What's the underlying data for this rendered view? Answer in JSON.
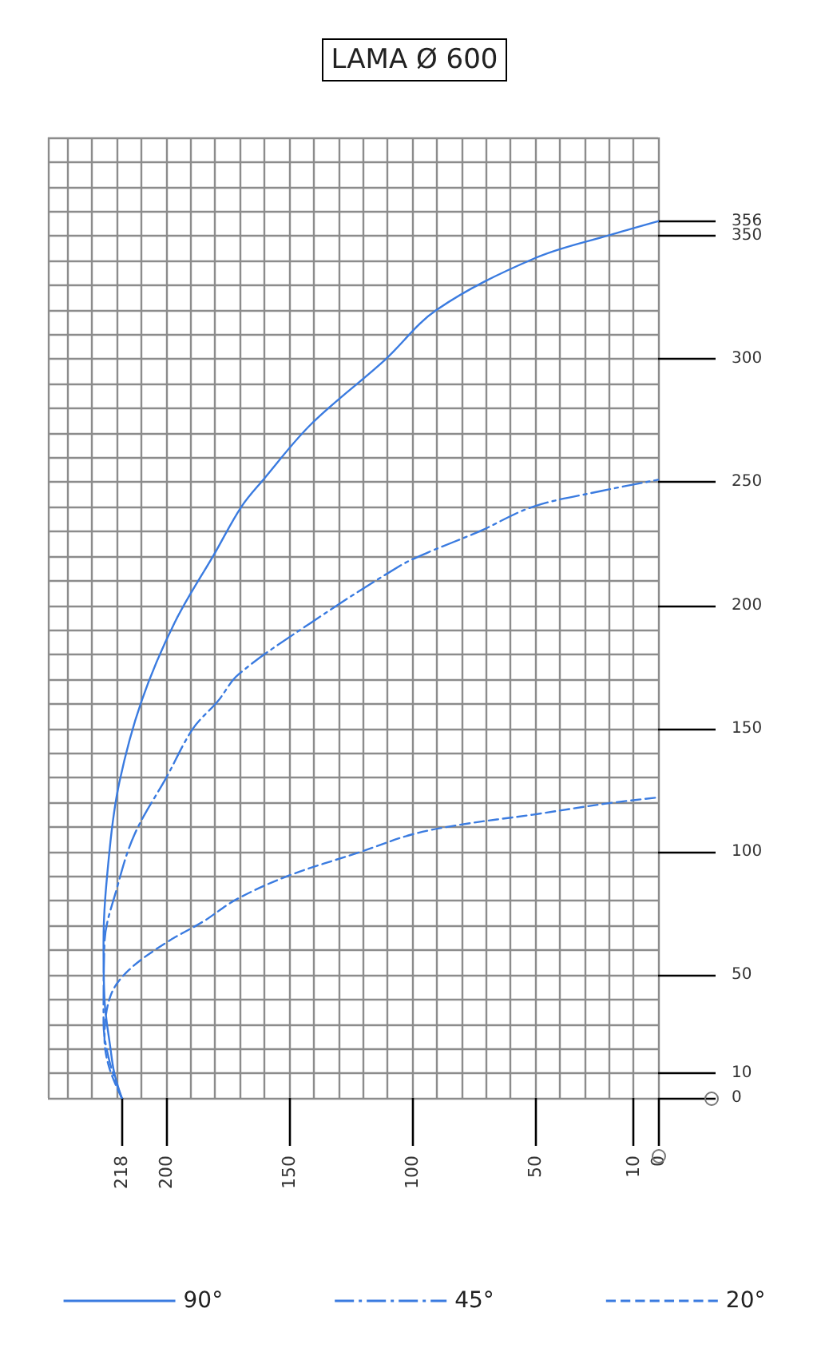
{
  "chart_data": {
    "type": "line",
    "title": "LAMA Ø 600",
    "xlim": [
      248,
      0
    ],
    "ylim": [
      0,
      390
    ],
    "xticks": [
      0,
      10,
      {
        "value": 20,
        "label": null
      },
      {
        "value": 30,
        "label": null
      },
      {
        "value": 40,
        "label": null
      },
      50,
      {
        "value": 60,
        "label": null
      },
      {
        "value": 70,
        "label": null
      },
      {
        "value": 80,
        "label": null
      },
      {
        "value": 90,
        "label": null
      },
      100,
      {
        "value": 110,
        "label": null
      },
      {
        "value": 120,
        "label": null
      },
      {
        "value": 130,
        "label": null
      },
      {
        "value": 140,
        "label": null
      },
      150,
      {
        "value": 160,
        "label": null
      },
      {
        "value": 170,
        "label": null
      },
      {
        "value": 180,
        "label": null
      },
      {
        "value": 190,
        "label": null
      },
      200,
      {
        "value": 210,
        "label": null
      },
      218,
      {
        "value": 220,
        "label": null
      },
      {
        "value": 230,
        "label": null
      },
      {
        "value": 240,
        "label": null
      }
    ],
    "yticks": [
      0,
      10,
      {
        "value": 20,
        "label": null
      },
      {
        "value": 30,
        "label": null
      },
      {
        "value": 40,
        "label": null
      },
      50,
      {
        "value": 60,
        "label": null
      },
      {
        "value": 70,
        "label": null
      },
      {
        "value": 80,
        "label": null
      },
      {
        "value": 90,
        "label": null
      },
      100,
      {
        "value": 110,
        "label": null
      },
      {
        "value": 120,
        "label": null
      },
      {
        "value": 130,
        "label": null
      },
      {
        "value": 140,
        "label": null
      },
      150,
      {
        "value": 160,
        "label": null
      },
      {
        "value": 170,
        "label": null
      },
      {
        "value": 180,
        "label": null
      },
      {
        "value": 190,
        "label": null
      },
      200,
      {
        "value": 210,
        "label": null
      },
      {
        "value": 220,
        "label": null
      },
      {
        "value": 230,
        "label": null
      },
      {
        "value": 240,
        "label": null
      },
      250,
      {
        "value": 260,
        "label": null
      },
      {
        "value": 270,
        "label": null
      },
      {
        "value": 280,
        "label": null
      },
      {
        "value": 290,
        "label": null
      },
      300,
      {
        "value": 310,
        "label": null
      },
      {
        "value": 320,
        "label": null
      },
      {
        "value": 330,
        "label": null
      },
      {
        "value": 340,
        "label": null
      },
      350,
      356,
      {
        "value": 360,
        "label": null
      },
      {
        "value": 370,
        "label": null
      },
      {
        "value": 380,
        "label": null
      },
      {
        "value": 390,
        "label": null
      }
    ],
    "grid": true,
    "legend": "bottom",
    "marker": "none",
    "series": [
      {
        "name": "90°",
        "color": "#3a7be0",
        "line_style": "solid",
        "x": [
          218,
          221,
          222.5,
          225,
          225.4,
          223,
          219,
          210,
          196.5,
          180,
          169.4,
          160.5,
          141,
          111,
          90,
          50,
          18.5,
          0
        ],
        "values": [
          0,
          10,
          19.5,
          40,
          63,
          100,
          128,
          161,
          193,
          221.5,
          240,
          251,
          273.6,
          299.7,
          320,
          341,
          350.7,
          356
        ]
      },
      {
        "name": "45°",
        "color": "#3a7be0",
        "line_style": "dashdot",
        "x": [
          218,
          223,
          225.4,
          225,
          220,
          212.8,
          199.7,
          189,
          179,
          170.5,
          141,
          105,
          93.5,
          72.7,
          51,
          22.8,
          0
        ],
        "values": [
          0,
          15,
          30.6,
          63,
          85,
          107,
          130.4,
          150,
          161,
          172,
          193,
          216,
          221.5,
          230,
          240,
          246.5,
          251
        ]
      },
      {
        "name": "20°",
        "color": "#3a7be0",
        "line_style": "dashed",
        "x": [
          218,
          223,
          225,
          222.5,
          215,
          200,
          184.6,
          171.6,
          150,
          120.6,
          100,
          80,
          51,
          20.6,
          0
        ],
        "values": [
          0,
          12,
          24,
          41.6,
          52,
          63,
          71.8,
          80.5,
          90.3,
          100,
          107,
          111,
          115,
          119.6,
          122
        ]
      }
    ]
  }
}
